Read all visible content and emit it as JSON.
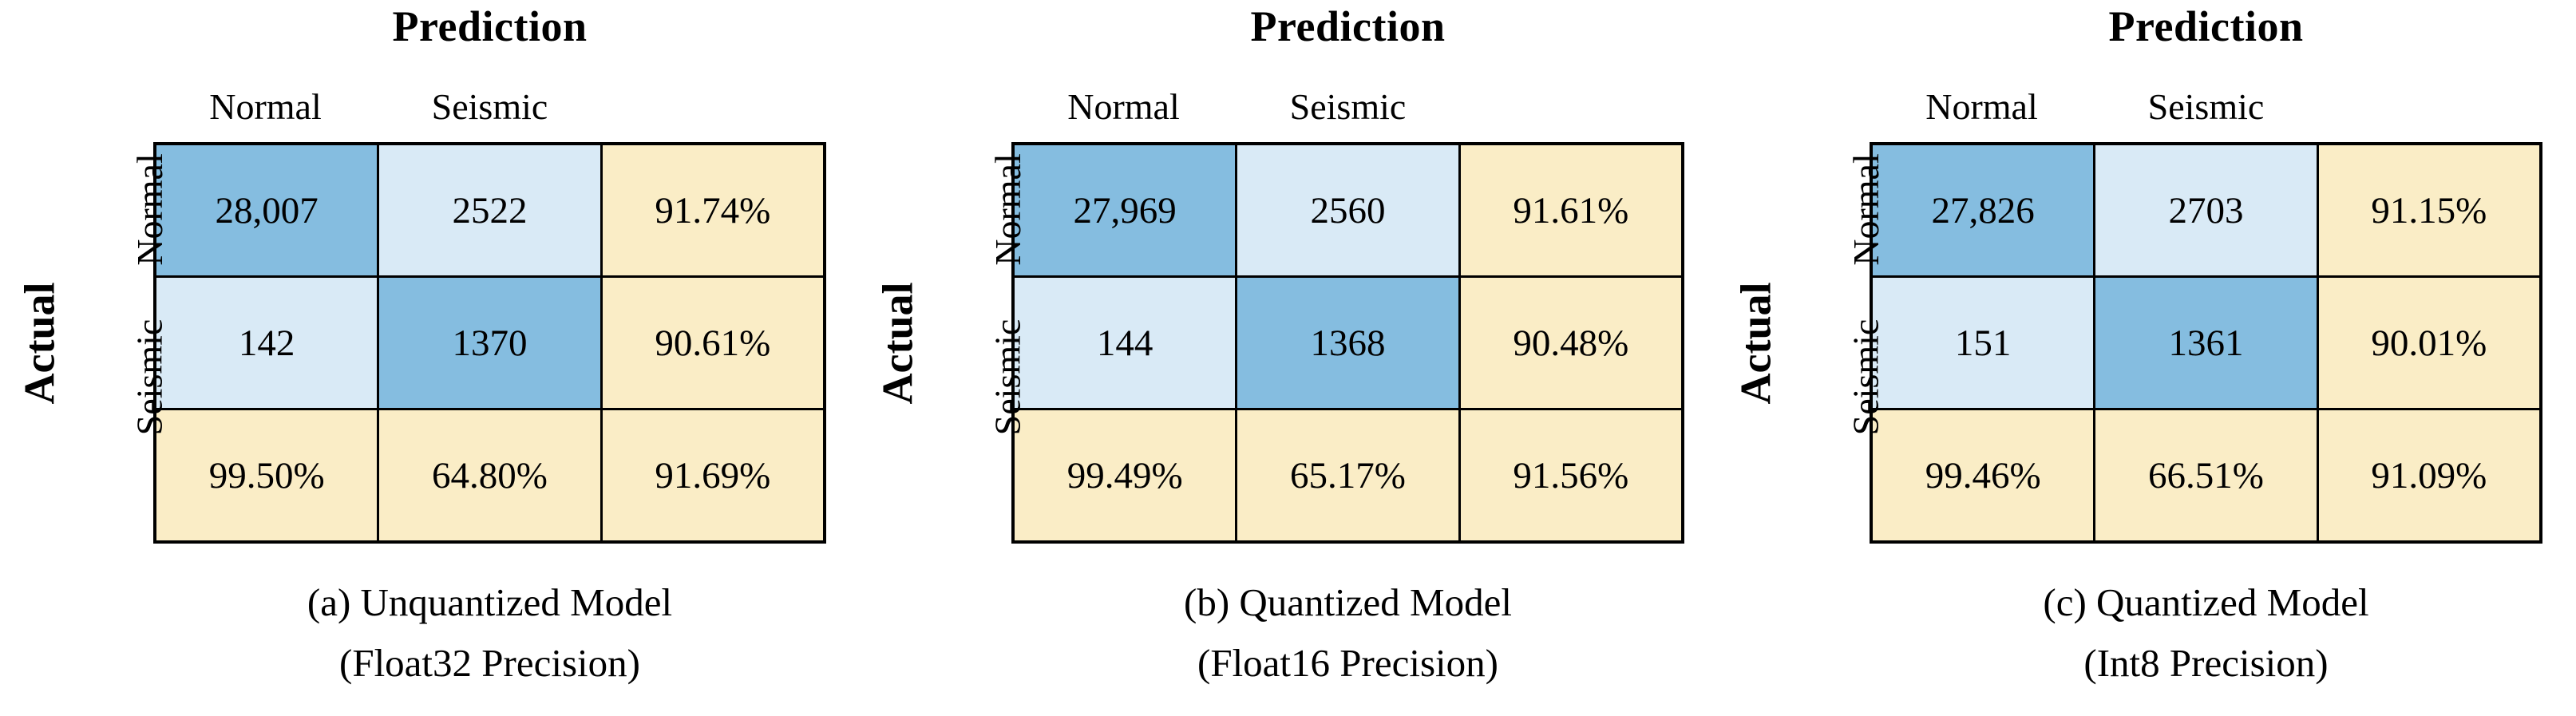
{
  "figure": {
    "colors": {
      "hit_cell": "#85BDE0",
      "miss_cell": "#D9EAF6",
      "summary_cell": "#FAEDC6",
      "border": "#000000",
      "text": "#000000",
      "background": "#FFFFFF"
    },
    "panels": [
      {
        "prediction_label": "Prediction",
        "actual_label": "Actual",
        "col_labels": [
          "Normal",
          "Seismic"
        ],
        "row_labels": [
          "Normal",
          "Seismic"
        ],
        "cells": [
          [
            "28,007",
            "2522",
            "91.74%"
          ],
          [
            "142",
            "1370",
            "90.61%"
          ],
          [
            "99.50%",
            "64.80%",
            "91.69%"
          ]
        ],
        "caption_line1": "(a) Unquantized Model",
        "caption_line2": "(Float32 Precision)"
      },
      {
        "prediction_label": "Prediction",
        "actual_label": "Actual",
        "col_labels": [
          "Normal",
          "Seismic"
        ],
        "row_labels": [
          "Normal",
          "Seismic"
        ],
        "cells": [
          [
            "27,969",
            "2560",
            "91.61%"
          ],
          [
            "144",
            "1368",
            "90.48%"
          ],
          [
            "99.49%",
            "65.17%",
            "91.56%"
          ]
        ],
        "caption_line1": "(b) Quantized Model",
        "caption_line2": "(Float16 Precision)"
      },
      {
        "prediction_label": "Prediction",
        "actual_label": "Actual",
        "col_labels": [
          "Normal",
          "Seismic"
        ],
        "row_labels": [
          "Normal",
          "Seismic"
        ],
        "cells": [
          [
            "27,826",
            "2703",
            "91.15%"
          ],
          [
            "151",
            "1361",
            "90.01%"
          ],
          [
            "99.46%",
            "66.51%",
            "91.09%"
          ]
        ],
        "caption_line1": "(c) Quantized Model",
        "caption_line2": "(Int8 Precision)"
      }
    ]
  },
  "chart_data": [
    {
      "type": "heatmap",
      "title": "(a) Unquantized Model (Float32 Precision)",
      "x_axis_label": "Prediction",
      "y_axis_label": "Actual",
      "x_categories": [
        "Normal",
        "Seismic"
      ],
      "y_categories": [
        "Normal",
        "Seismic"
      ],
      "matrix_counts": [
        [
          28007,
          2522
        ],
        [
          142,
          1370
        ]
      ],
      "row_recall_percent": [
        91.74,
        90.61
      ],
      "col_precision_percent": [
        99.5,
        64.8
      ],
      "overall_accuracy_percent": 91.69,
      "legend_position": "none",
      "grid": true
    },
    {
      "type": "heatmap",
      "title": "(b) Quantized Model (Float16 Precision)",
      "x_axis_label": "Prediction",
      "y_axis_label": "Actual",
      "x_categories": [
        "Normal",
        "Seismic"
      ],
      "y_categories": [
        "Normal",
        "Seismic"
      ],
      "matrix_counts": [
        [
          27969,
          2560
        ],
        [
          144,
          1368
        ]
      ],
      "row_recall_percent": [
        91.61,
        90.48
      ],
      "col_precision_percent": [
        99.49,
        65.17
      ],
      "overall_accuracy_percent": 91.56,
      "legend_position": "none",
      "grid": true
    },
    {
      "type": "heatmap",
      "title": "(c) Quantized Model (Int8 Precision)",
      "x_axis_label": "Prediction",
      "y_axis_label": "Actual",
      "x_categories": [
        "Normal",
        "Seismic"
      ],
      "y_categories": [
        "Normal",
        "Seismic"
      ],
      "matrix_counts": [
        [
          27826,
          2703
        ],
        [
          151,
          1361
        ]
      ],
      "row_recall_percent": [
        91.15,
        90.01
      ],
      "col_precision_percent": [
        99.46,
        66.51
      ],
      "overall_accuracy_percent": 91.09,
      "legend_position": "none",
      "grid": true
    }
  ]
}
